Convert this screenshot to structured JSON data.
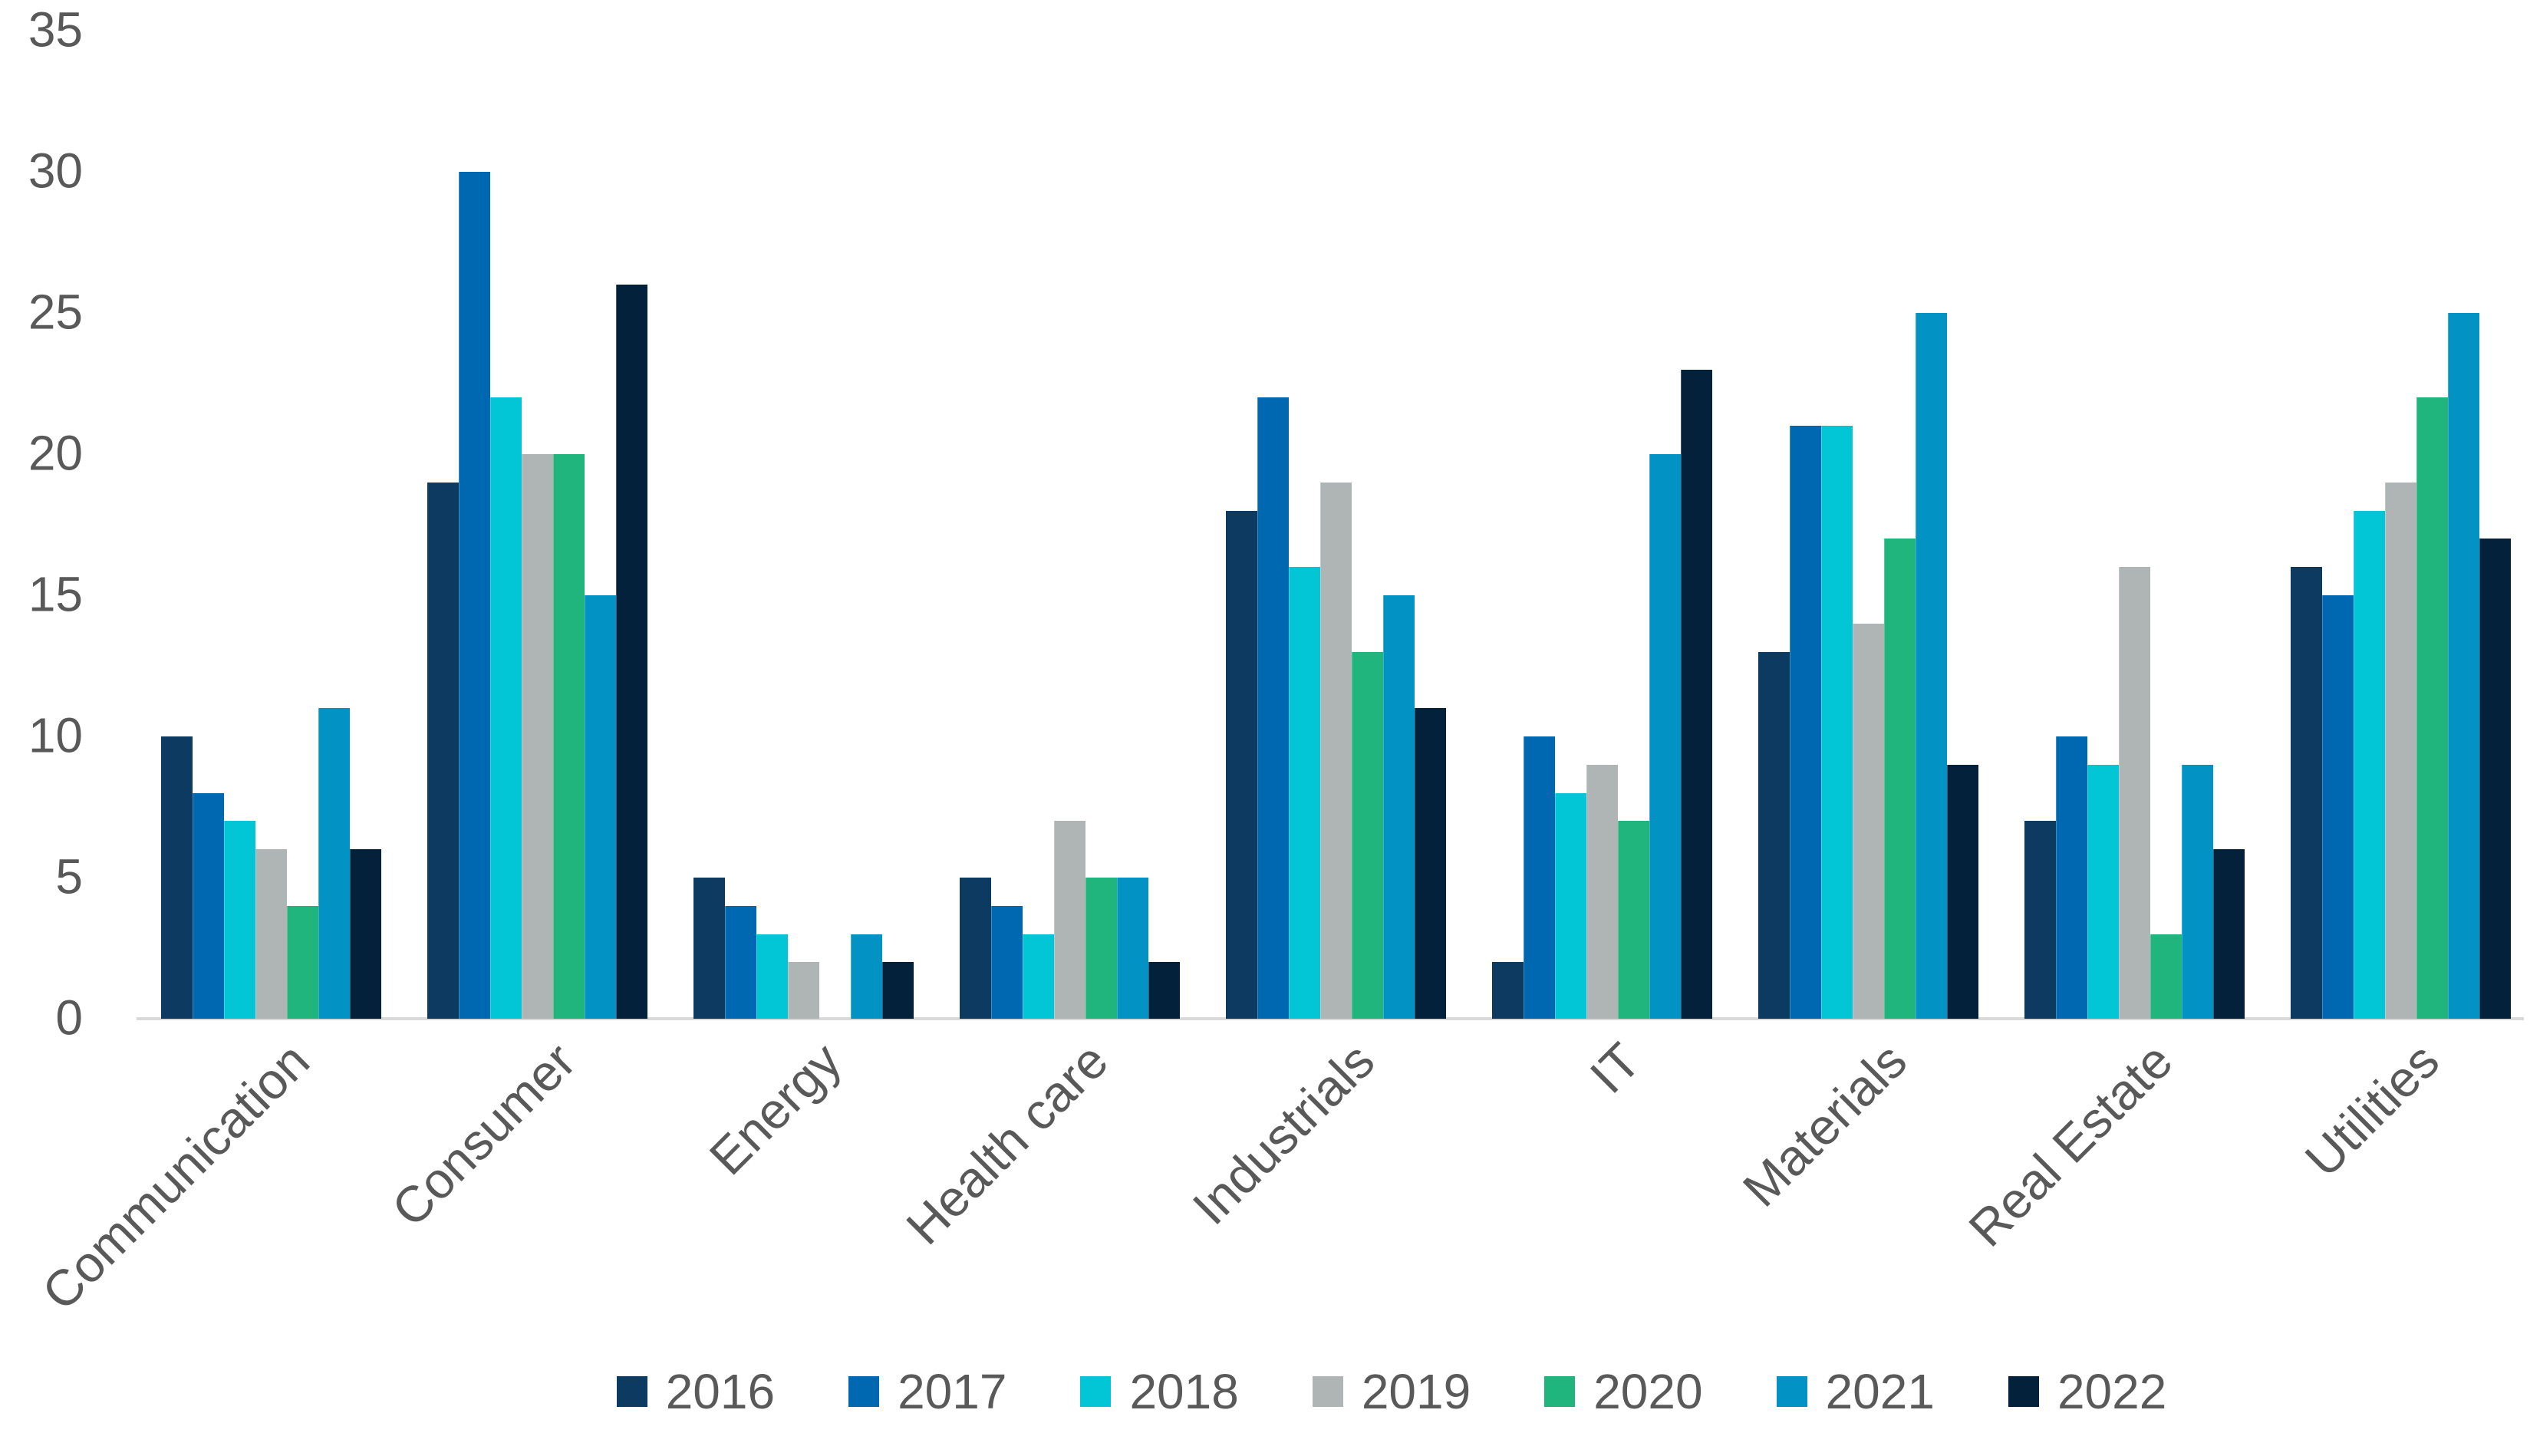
{
  "chart_data": {
    "type": "bar",
    "title": "",
    "xlabel": "",
    "ylabel": "",
    "categories": [
      "Communication",
      "Consumer",
      "Energy",
      "Health care",
      "Industrials",
      "IT",
      "Materials",
      "Real Estate",
      "Utilities"
    ],
    "series": [
      {
        "name": "2016",
        "color": "#0d3a60",
        "values": [
          10,
          19,
          5,
          5,
          18,
          2,
          13,
          7,
          16
        ]
      },
      {
        "name": "2017",
        "color": "#0067b1",
        "values": [
          8,
          30,
          4,
          4,
          22,
          10,
          21,
          10,
          15
        ]
      },
      {
        "name": "2018",
        "color": "#02c5d5",
        "values": [
          7,
          22,
          3,
          3,
          16,
          8,
          21,
          9,
          18
        ]
      },
      {
        "name": "2019",
        "color": "#afb4b5",
        "values": [
          6,
          20,
          2,
          7,
          19,
          9,
          14,
          16,
          19
        ]
      },
      {
        "name": "2020",
        "color": "#20b57c",
        "values": [
          4,
          20,
          0,
          5,
          13,
          7,
          17,
          3,
          22
        ]
      },
      {
        "name": "2021",
        "color": "#0292c4",
        "values": [
          11,
          15,
          3,
          5,
          15,
          20,
          25,
          9,
          25
        ]
      },
      {
        "name": "2022",
        "color": "#04213c",
        "values": [
          6,
          26,
          2,
          2,
          11,
          23,
          9,
          6,
          17
        ]
      }
    ],
    "ylim": [
      0,
      35
    ],
    "yticks": [
      35,
      30,
      25,
      20,
      15,
      10,
      5,
      0
    ],
    "grid": false,
    "legend_position": "bottom",
    "axis_line_color": "#d9d9d9",
    "text_color": "#595959",
    "background_color": "#ffffff"
  }
}
